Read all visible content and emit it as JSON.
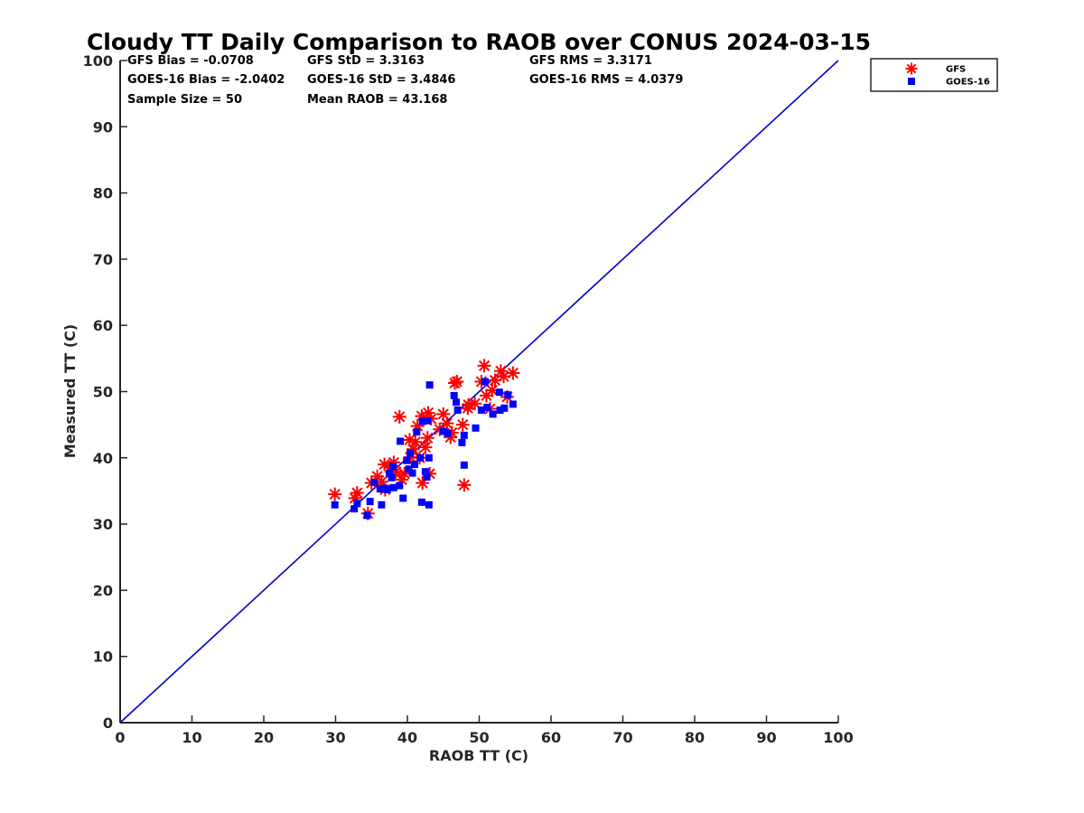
{
  "chart_data": {
    "type": "scatter",
    "title": "Cloudy TT Daily Comparison to RAOB over CONUS 2024-03-15",
    "xlabel": "RAOB TT (C)",
    "ylabel": "Measured TT (C)",
    "xlim": [
      0,
      100
    ],
    "ylim": [
      0,
      100
    ],
    "xticks": [
      "0",
      "10",
      "20",
      "30",
      "40",
      "50",
      "60",
      "70",
      "80",
      "90",
      "100"
    ],
    "yticks": [
      "0",
      "10",
      "20",
      "30",
      "40",
      "50",
      "60",
      "70",
      "80",
      "90",
      "100"
    ],
    "grid": false,
    "legend_position": "top-right",
    "reference_line": {
      "from": [
        0,
        0
      ],
      "to": [
        100,
        100
      ],
      "color": "#0000cc"
    },
    "stats": [
      [
        "GFS Bias = -0.0708",
        "GFS StD = 3.3163",
        "GFS RMS = 3.3171"
      ],
      [
        "GOES-16 Bias = -2.0402",
        "GOES-16 StD = 3.4846",
        "GOES-16 RMS = 4.0379"
      ],
      [
        "Sample Size = 50",
        "Mean RAOB = 43.168",
        ""
      ]
    ],
    "series": [
      {
        "name": "GFS",
        "marker": "asterisk",
        "color": "#ff0000",
        "points": [
          [
            29.9,
            34.5
          ],
          [
            32.7,
            33.9
          ],
          [
            33.0,
            34.7
          ],
          [
            34.5,
            31.6
          ],
          [
            35.0,
            36.2
          ],
          [
            35.8,
            37.2
          ],
          [
            36.4,
            36.4
          ],
          [
            36.8,
            39.0
          ],
          [
            36.9,
            35.2
          ],
          [
            37.6,
            38.5
          ],
          [
            38.1,
            39.3
          ],
          [
            38.4,
            37.9
          ],
          [
            38.9,
            46.2
          ],
          [
            39.2,
            36.7
          ],
          [
            39.6,
            37.6
          ],
          [
            40.3,
            42.7
          ],
          [
            40.4,
            40.1
          ],
          [
            40.8,
            41.3
          ],
          [
            41.1,
            42.4
          ],
          [
            41.4,
            44.8
          ],
          [
            41.7,
            40.0
          ],
          [
            42.0,
            46.3
          ],
          [
            42.1,
            36.2
          ],
          [
            42.5,
            41.6
          ],
          [
            42.8,
            43.0
          ],
          [
            42.9,
            46.8
          ],
          [
            43.1,
            37.6
          ],
          [
            43.3,
            45.9
          ],
          [
            45.0,
            46.6
          ],
          [
            45.5,
            45.2
          ],
          [
            46.0,
            43.1
          ],
          [
            46.6,
            51.3
          ],
          [
            46.9,
            51.5
          ],
          [
            47.7,
            45.0
          ],
          [
            47.9,
            35.9
          ],
          [
            48.4,
            47.5
          ],
          [
            49.4,
            48.2
          ],
          [
            50.3,
            51.5
          ],
          [
            50.7,
            53.9
          ],
          [
            51.0,
            49.4
          ],
          [
            51.5,
            47.4
          ],
          [
            51.8,
            50.2
          ],
          [
            52.2,
            51.7
          ],
          [
            53.0,
            53.1
          ],
          [
            53.4,
            52.3
          ],
          [
            53.9,
            49.2
          ],
          [
            54.7,
            52.8
          ],
          [
            44.5,
            44.3
          ],
          [
            46.2,
            43.8
          ],
          [
            48.5,
            48.0
          ]
        ]
      },
      {
        "name": "GOES-16",
        "marker": "square",
        "color": "#0000ff",
        "points": [
          [
            29.9,
            32.9
          ],
          [
            32.6,
            32.3
          ],
          [
            33.0,
            33.1
          ],
          [
            34.4,
            31.3
          ],
          [
            34.8,
            33.4
          ],
          [
            35.4,
            36.3
          ],
          [
            36.2,
            35.3
          ],
          [
            36.4,
            32.9
          ],
          [
            36.8,
            35.4
          ],
          [
            37.2,
            35.2
          ],
          [
            37.5,
            37.7
          ],
          [
            37.8,
            37.0
          ],
          [
            38.0,
            38.7
          ],
          [
            38.1,
            35.5
          ],
          [
            38.9,
            35.8
          ],
          [
            39.0,
            42.5
          ],
          [
            39.4,
            33.9
          ],
          [
            39.9,
            39.6
          ],
          [
            40.2,
            38.3
          ],
          [
            40.4,
            40.7
          ],
          [
            40.7,
            37.7
          ],
          [
            41.0,
            39.0
          ],
          [
            41.3,
            43.9
          ],
          [
            41.8,
            40.0
          ],
          [
            42.0,
            33.3
          ],
          [
            42.1,
            45.5
          ],
          [
            42.5,
            37.9
          ],
          [
            42.7,
            37.1
          ],
          [
            42.8,
            45.6
          ],
          [
            43.0,
            32.9
          ],
          [
            43.0,
            40.0
          ],
          [
            43.1,
            51.0
          ],
          [
            45.0,
            44.0
          ],
          [
            45.6,
            43.7
          ],
          [
            46.5,
            49.4
          ],
          [
            46.8,
            48.4
          ],
          [
            47.0,
            47.2
          ],
          [
            47.6,
            42.3
          ],
          [
            47.9,
            43.4
          ],
          [
            47.9,
            38.9
          ],
          [
            49.5,
            44.5
          ],
          [
            50.3,
            47.2
          ],
          [
            50.8,
            51.5
          ],
          [
            51.1,
            47.6
          ],
          [
            51.9,
            46.6
          ],
          [
            52.8,
            49.9
          ],
          [
            52.9,
            47.2
          ],
          [
            53.5,
            47.5
          ],
          [
            54.0,
            49.5
          ],
          [
            54.7,
            48.1
          ]
        ]
      }
    ]
  }
}
